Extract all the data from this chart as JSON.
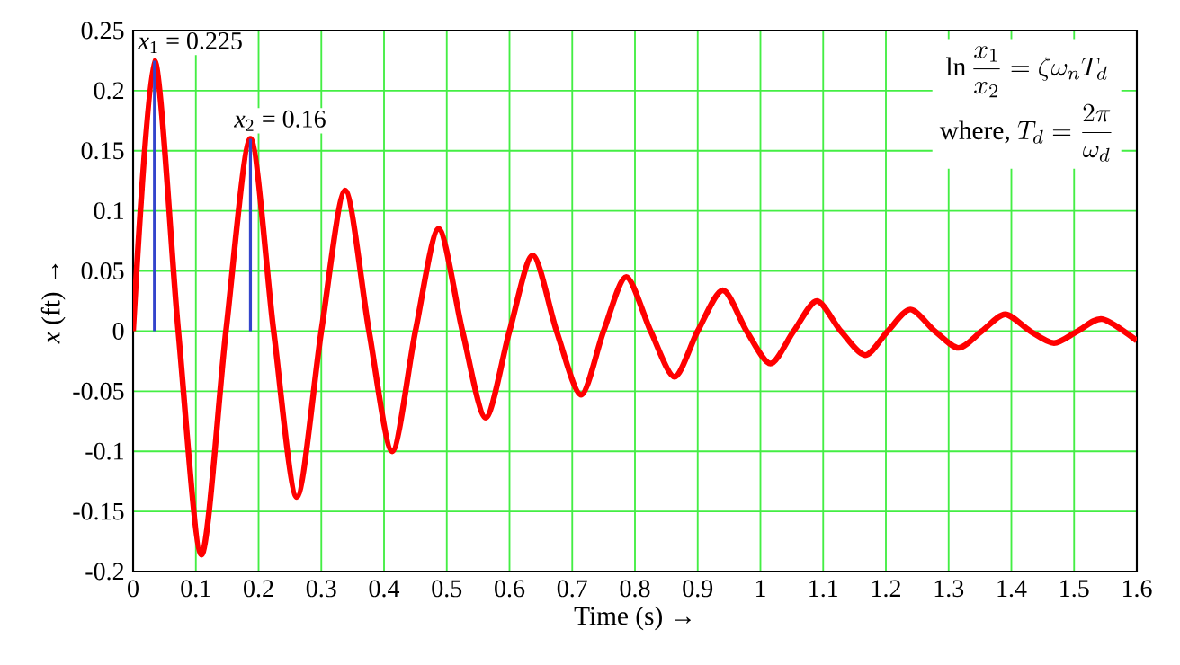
{
  "chart_data": {
    "type": "line",
    "xlabel": "Time (s) →",
    "ylabel": "*x* (ft) →",
    "x": [
      0,
      0.034,
      0.072,
      0.109,
      0.148,
      0.187,
      0.224,
      0.261,
      0.3,
      0.338,
      0.376,
      0.413,
      0.45,
      0.487,
      0.525,
      0.562,
      0.6,
      0.637,
      0.675,
      0.714,
      0.75,
      0.786,
      0.825,
      0.863,
      0.9,
      0.94,
      0.978,
      1.016,
      1.053,
      1.09,
      1.128,
      1.167,
      1.203,
      1.239,
      1.278,
      1.316,
      1.353,
      1.39,
      1.43,
      1.468,
      1.506,
      1.545,
      1.6
    ],
    "values": [
      0,
      0.225,
      0,
      -0.186,
      0,
      0.16,
      0,
      -0.138,
      0,
      0.117,
      0,
      -0.1,
      0,
      0.085,
      0,
      -0.072,
      0,
      0.063,
      0,
      -0.053,
      0,
      0.045,
      0,
      -0.038,
      0,
      0.034,
      0,
      -0.027,
      0,
      0.025,
      0,
      -0.02,
      0,
      0.018,
      0,
      -0.014,
      0,
      0.014,
      0,
      -0.01,
      0,
      0.01,
      -0.008
    ],
    "color": "#ff0000",
    "marker": "none",
    "line_style": "solid",
    "grid": true,
    "xlim": [
      0,
      1.6
    ],
    "ylim": [
      -0.2,
      0.25
    ],
    "xticks": [
      0,
      0.1,
      0.2,
      0.3,
      0.4,
      0.5,
      0.6,
      0.7,
      0.8,
      0.9,
      1,
      1.1,
      1.2,
      1.3,
      1.4,
      1.5,
      1.6
    ],
    "yticks": [
      -0.2,
      -0.15,
      -0.1,
      -0.05,
      0,
      0.05,
      0.1,
      0.15,
      0.2,
      0.25
    ],
    "annotations": [
      {
        "text": "*x*$_{1}$ = 0.225",
        "x": 0.034,
        "y": 0.225
      },
      {
        "text": "*x*$_{2}$ = 0.16",
        "x": 0.187,
        "y": 0.16
      },
      "\\ln\\frac{x_1}{x_2}=\\zeta\\omega_n T_d",
      "\\mbox{where, }T_d=\\frac{2\\pi}{\\omega_d}"
    ]
  }
}
